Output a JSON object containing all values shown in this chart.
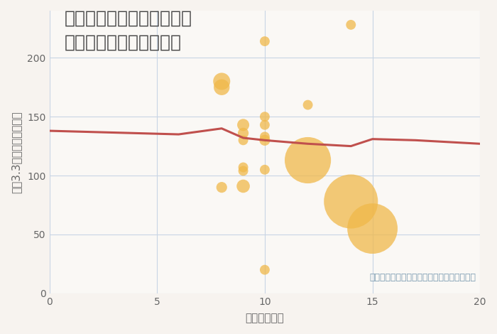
{
  "title": "大阪府高槻市登美の里町の\n駅距離別中古戸建て価格",
  "xlabel": "駅距離（分）",
  "ylabel": "坪（3.3㎡）単価（万円）",
  "bg_color": "#f7f3ef",
  "plot_bg_color": "#faf8f5",
  "scatter_color": "#f0b84a",
  "scatter_alpha": 0.75,
  "trend_color": "#c0504d",
  "grid_color": "#c8d4e4",
  "annotation_color": "#7a9ab0",
  "xlim": [
    0,
    20
  ],
  "ylim": [
    0,
    240
  ],
  "xticks": [
    0,
    5,
    10,
    15,
    20
  ],
  "yticks": [
    0,
    50,
    100,
    150,
    200
  ],
  "scatter_x": [
    8,
    8,
    8,
    9,
    9,
    9,
    9,
    9,
    9,
    10,
    10,
    10,
    10,
    10,
    10,
    10,
    12,
    12,
    14,
    14,
    15
  ],
  "scatter_y": [
    90,
    180,
    175,
    143,
    136,
    130,
    104,
    107,
    91,
    214,
    150,
    143,
    133,
    130,
    105,
    20,
    160,
    113,
    228,
    78,
    55
  ],
  "scatter_s": [
    120,
    300,
    260,
    150,
    120,
    100,
    100,
    100,
    180,
    100,
    100,
    100,
    100,
    120,
    100,
    100,
    100,
    2200,
    100,
    3000,
    2600
  ],
  "trend_x": [
    0,
    2,
    4,
    6,
    8,
    9,
    10,
    12,
    14,
    15,
    17,
    20
  ],
  "trend_y": [
    138,
    137,
    136,
    135,
    140,
    132,
    130,
    127,
    125,
    131,
    130,
    127
  ],
  "annotation": "円の大きさは、取引のあった物件面積を示す",
  "title_color": "#444444",
  "title_fontsize": 18,
  "label_fontsize": 11,
  "tick_fontsize": 10,
  "annot_fontsize": 9
}
